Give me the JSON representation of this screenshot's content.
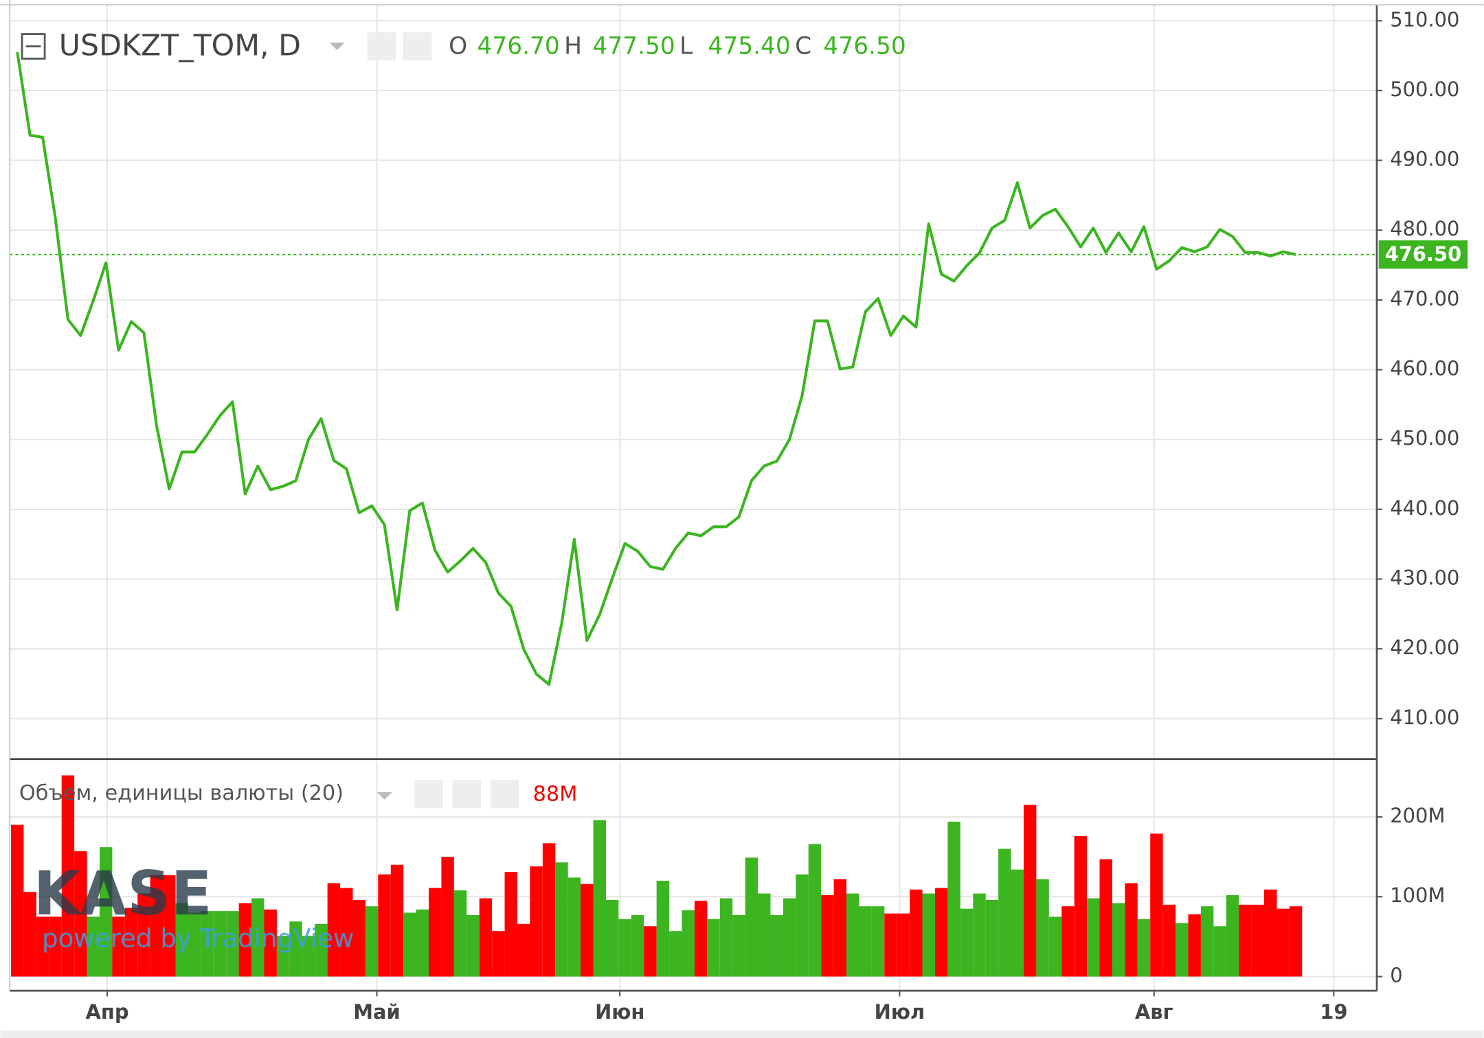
{
  "chart_data": [
    {
      "type": "line",
      "title": "USDKZT_TOM, D",
      "ohlc": [
        {
          "label": "O",
          "value": 476.7,
          "value_label": "476.70"
        },
        {
          "label": "H",
          "value": 477.5,
          "value_label": "477.50"
        },
        {
          "label": "L",
          "value": 475.4,
          "value_label": "475.40"
        },
        {
          "label": "C",
          "value": 476.5,
          "value_label": "476.50"
        }
      ],
      "last_value": 476.5,
      "last_value_label": "476.50",
      "color": "#3cb521",
      "values": [
        505.5,
        493.6,
        493.3,
        481.8,
        467.2,
        464.9,
        469.9,
        475.3,
        462.8,
        466.9,
        465.3,
        452.0,
        442.9,
        448.2,
        448.2,
        450.7,
        453.4,
        455.4,
        442.2,
        446.2,
        442.8,
        443.3,
        444.1,
        450.0,
        453.0,
        447.0,
        445.8,
        439.5,
        440.5,
        437.8,
        425.6,
        439.8,
        440.9,
        434.1,
        431.0,
        432.6,
        434.4,
        432.4,
        428.0,
        426.1,
        420.0,
        416.4,
        414.9,
        423.6,
        435.7,
        421.2,
        424.9,
        430.1,
        435.1,
        434.0,
        431.8,
        431.4,
        434.4,
        436.6,
        436.2,
        437.5,
        437.5,
        438.9,
        444.1,
        446.2,
        446.9,
        450.0,
        456.3,
        467.0,
        467.0,
        460.1,
        460.4,
        468.3,
        470.2,
        464.9,
        467.7,
        466.1,
        480.9,
        473.7,
        472.7,
        474.9,
        476.7,
        480.3,
        481.4,
        486.8,
        480.3,
        482.1,
        483.0,
        480.5,
        477.6,
        480.3,
        476.8,
        479.6,
        476.9,
        480.5,
        474.4,
        475.6,
        477.5,
        476.9,
        477.6,
        480.1,
        479.1,
        476.8,
        476.8,
        476.3,
        476.9,
        476.5
      ],
      "xlim": [
        -0.6,
        107.4
      ],
      "xticks": [
        {
          "value": 7.1,
          "label": "Апр"
        },
        {
          "value": 28.4,
          "label": "Май"
        },
        {
          "value": 47.6,
          "label": "Июн"
        },
        {
          "value": 69.7,
          "label": "Июл"
        },
        {
          "value": 89.8,
          "label": "Авг"
        },
        {
          "value": 104.0,
          "label": "19"
        }
      ],
      "ylim": [
        404.2,
        512.3
      ],
      "yticks": [
        {
          "value": 410,
          "label": "410.00"
        },
        {
          "value": 420,
          "label": "420.00"
        },
        {
          "value": 430,
          "label": "430.00"
        },
        {
          "value": 440,
          "label": "440.00"
        },
        {
          "value": 450,
          "label": "450.00"
        },
        {
          "value": 460,
          "label": "460.00"
        },
        {
          "value": 470,
          "label": "470.00"
        },
        {
          "value": 480,
          "label": "480.00"
        },
        {
          "value": 490,
          "label": "490.00"
        },
        {
          "value": 500,
          "label": "500.00"
        },
        {
          "value": 510,
          "label": "510.00"
        }
      ],
      "grid": true,
      "watermark": "KASE",
      "credit": "powered by TradingView"
    },
    {
      "type": "bar",
      "title": "Объем, единицы валюты (20)",
      "last_value": 88,
      "last_value_label": "88M",
      "values": [
        190,
        106,
        75,
        75,
        252,
        157,
        75,
        162,
        75,
        86,
        104,
        127,
        127,
        92,
        80,
        82,
        82,
        82,
        92,
        98,
        84,
        51,
        69,
        51,
        66,
        117,
        111,
        96,
        88,
        128,
        140,
        80,
        84,
        111,
        150,
        108,
        77,
        98,
        57,
        131,
        66,
        138,
        167,
        143,
        124,
        116,
        196,
        96,
        72,
        77,
        63,
        120,
        57,
        83,
        95,
        72,
        98,
        77,
        149,
        104,
        77,
        98,
        128,
        166,
        102,
        122,
        104,
        88,
        88,
        79,
        79,
        109,
        104,
        111,
        194,
        85,
        104,
        96,
        160,
        134,
        215,
        122,
        75,
        88,
        176,
        98,
        147,
        92,
        117,
        72,
        179,
        90,
        67,
        78,
        88,
        63,
        102,
        90,
        90,
        109,
        85,
        88
      ],
      "colors": [
        "#ff0000",
        "#ff0000",
        "#ff0000",
        "#ff0000",
        "#ff0000",
        "#ff0000",
        "#3cb521",
        "#3cb521",
        "#ff0000",
        "#ff0000",
        "#ff0000",
        "#ff0000",
        "#ff0000",
        "#3cb521",
        "#3cb521",
        "#3cb521",
        "#3cb521",
        "#3cb521",
        "#ff0000",
        "#3cb521",
        "#ff0000",
        "#3cb521",
        "#3cb521",
        "#3cb521",
        "#3cb521",
        "#ff0000",
        "#ff0000",
        "#ff0000",
        "#3cb521",
        "#ff0000",
        "#ff0000",
        "#3cb521",
        "#3cb521",
        "#ff0000",
        "#ff0000",
        "#3cb521",
        "#3cb521",
        "#ff0000",
        "#ff0000",
        "#ff0000",
        "#ff0000",
        "#ff0000",
        "#ff0000",
        "#3cb521",
        "#3cb521",
        "#ff0000",
        "#3cb521",
        "#3cb521",
        "#3cb521",
        "#3cb521",
        "#ff0000",
        "#3cb521",
        "#3cb521",
        "#3cb521",
        "#ff0000",
        "#3cb521",
        "#3cb521",
        "#3cb521",
        "#3cb521",
        "#3cb521",
        "#3cb521",
        "#3cb521",
        "#3cb521",
        "#3cb521",
        "#ff0000",
        "#ff0000",
        "#3cb521",
        "#3cb521",
        "#3cb521",
        "#ff0000",
        "#ff0000",
        "#ff0000",
        "#3cb521",
        "#ff0000",
        "#3cb521",
        "#3cb521",
        "#3cb521",
        "#3cb521",
        "#3cb521",
        "#3cb521",
        "#ff0000",
        "#3cb521",
        "#3cb521",
        "#ff0000",
        "#ff0000",
        "#3cb521",
        "#ff0000",
        "#3cb521",
        "#ff0000",
        "#3cb521",
        "#ff0000",
        "#ff0000",
        "#3cb521",
        "#ff0000",
        "#3cb521",
        "#3cb521",
        "#3cb521",
        "#ff0000",
        "#ff0000",
        "#ff0000",
        "#ff0000",
        "#ff0000"
      ],
      "ylim": [
        0,
        270
      ],
      "yticks": [
        0,
        {
          "value": 100,
          "label": "100M"
        },
        {
          "value": 200,
          "label": "200M"
        }
      ]
    }
  ]
}
